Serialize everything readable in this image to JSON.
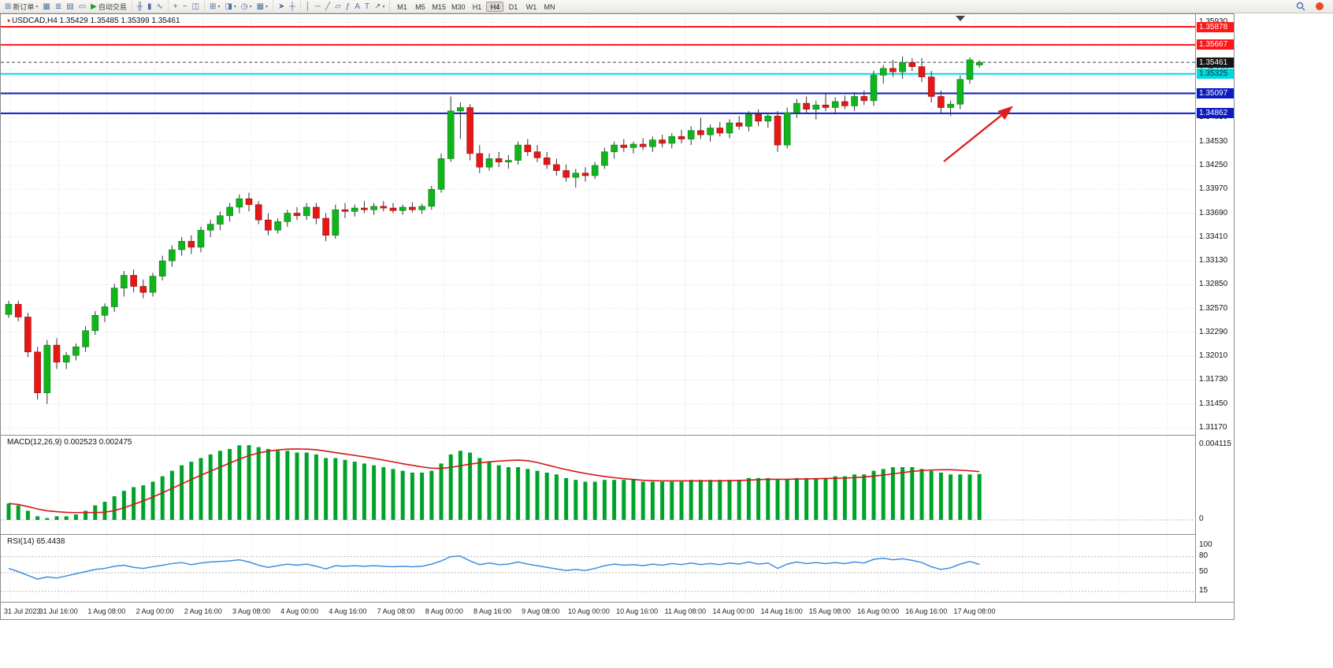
{
  "toolbar": {
    "new_order_label": "新订单",
    "autotrading_label": "自动交易",
    "icon_groups": [
      {
        "items": [
          {
            "name": "new-order-button",
            "glyph": "⊞",
            "label_key": "new_order_label",
            "caret": true
          },
          {
            "name": "charts-icon",
            "glyph": "▦"
          },
          {
            "name": "market-watch-icon",
            "glyph": "≣"
          },
          {
            "name": "navigator-icon",
            "glyph": "▤"
          },
          {
            "name": "terminal-icon",
            "glyph": "▭"
          },
          {
            "name": "autotrading-button",
            "glyph": "▶",
            "label_key": "autotrading_label",
            "play": true
          }
        ]
      },
      {
        "items": [
          {
            "name": "bar-chart-icon",
            "glyph": "╫"
          },
          {
            "name": "candlestick-chart-icon",
            "glyph": "▮"
          },
          {
            "name": "line-chart-icon",
            "glyph": "∿"
          }
        ]
      },
      {
        "items": [
          {
            "name": "zoom-in-icon",
            "glyph": "+"
          },
          {
            "name": "zoom-out-icon",
            "glyph": "−"
          },
          {
            "name": "tile-windows-icon",
            "glyph": "◫"
          }
        ]
      },
      {
        "items": [
          {
            "name": "new-chart-dropdown",
            "glyph": "⊞",
            "caret": true
          },
          {
            "name": "profiles-dropdown",
            "glyph": "◨",
            "caret": true
          },
          {
            "name": "periods-dropdown",
            "glyph": "◷",
            "caret": true
          },
          {
            "name": "templates-dropdown",
            "glyph": "▦",
            "caret": true
          }
        ]
      },
      {
        "items": [
          {
            "name": "cursor-icon",
            "glyph": "➤"
          },
          {
            "name": "crosshair-icon",
            "glyph": "┼"
          }
        ]
      },
      {
        "items": [
          {
            "name": "vertical-line-icon",
            "glyph": "│"
          },
          {
            "name": "horizontal-line-icon",
            "glyph": "─"
          },
          {
            "name": "trendline-icon",
            "glyph": "╱"
          },
          {
            "name": "channel-icon",
            "glyph": "▱"
          },
          {
            "name": "fibonacci-icon",
            "glyph": "ƒ"
          },
          {
            "name": "text-icon",
            "glyph": "A"
          },
          {
            "name": "label-icon",
            "glyph": "T"
          },
          {
            "name": "arrows-dropdown",
            "glyph": "↗",
            "caret": true
          }
        ]
      }
    ],
    "timeframes": [
      "M1",
      "M5",
      "M15",
      "M30",
      "H1",
      "H4",
      "D1",
      "W1",
      "MN"
    ],
    "active_timeframe": "H4"
  },
  "main": {
    "title": "USDCAD,H4 1.35429 1.35485 1.35399 1.35461"
  },
  "macd_panel": {
    "name": "MACD(12,26,9)",
    "value": "0.002523",
    "signal": "0.002475"
  },
  "rsi_panel": {
    "name": "RSI(14)",
    "value": "65.4438"
  },
  "chart_data": {
    "type": "candlestick",
    "symbol": "USDCAD",
    "timeframe": "H4",
    "title": "USDCAD,H4",
    "current_bar": {
      "open": 1.35429,
      "high": 1.35485,
      "low": 1.35399,
      "close": 1.35461
    },
    "bid": 1.35461,
    "up_color": "#12b41c",
    "down_color": "#e51717",
    "wick_color": "#333333",
    "price_axis": {
      "min": 1.3117,
      "max": 1.3593,
      "tick_step": 0.0028,
      "ticks": [
        "1.35930",
        "1.35650",
        "1.35370",
        "1.35090",
        "1.34810",
        "1.34530",
        "1.34250",
        "1.33970",
        "1.33690",
        "1.33410",
        "1.33130",
        "1.32850",
        "1.32570",
        "1.32290",
        "1.32010",
        "1.31730",
        "1.31450",
        "1.31170"
      ]
    },
    "time_labels": [
      "31 Jul 2023",
      "31 Jul 16:00",
      "1 Aug 08:00",
      "2 Aug 00:00",
      "2 Aug 16:00",
      "3 Aug 08:00",
      "4 Aug 00:00",
      "4 Aug 16:00",
      "7 Aug 08:00",
      "8 Aug 00:00",
      "8 Aug 16:00",
      "9 Aug 08:00",
      "10 Aug 00:00",
      "10 Aug 16:00",
      "11 Aug 08:00",
      "14 Aug 00:00",
      "14 Aug 16:00",
      "15 Aug 08:00",
      "16 Aug 00:00",
      "16 Aug 16:00",
      "17 Aug 08:00"
    ],
    "hlines": [
      {
        "price": 1.35878,
        "label": "1.35878",
        "color": "#ff1616",
        "badge_bg": "#ff1616",
        "badge_fg": "#ffffff",
        "width": 2
      },
      {
        "price": 1.35667,
        "label": "1.35667",
        "color": "#ff1616",
        "badge_bg": "#ff1616",
        "badge_fg": "#ffffff",
        "width": 2
      },
      {
        "price": 1.35325,
        "label": "1.35325",
        "color": "#00d8e0",
        "badge_bg": "#00d8e0",
        "badge_fg": "#003338",
        "width": 2
      },
      {
        "price": 1.35097,
        "label": "1.35097",
        "color": "#0d1bc4",
        "badge_bg": "#0d1bc4",
        "badge_fg": "#ffffff",
        "width": 2
      },
      {
        "price": 1.34862,
        "label": "1.34862",
        "color": "#0d1bc4",
        "badge_bg": "#0d1bc4",
        "badge_fg": "#ffffff",
        "width": 2
      }
    ],
    "bid_line": {
      "price": 1.35461,
      "label": "1.35461",
      "badge_bg": "#151515",
      "badge_fg": "#ffffff"
    },
    "annotations": [
      {
        "type": "arrow",
        "from": [
          1197,
          187
        ],
        "to": [
          1283,
          118
        ],
        "color": "#e02020"
      }
    ],
    "candles": [
      [
        1.325,
        1.3266,
        1.3246,
        1.3262
      ],
      [
        1.3262,
        1.3266,
        1.3242,
        1.3247
      ],
      [
        1.3247,
        1.3252,
        1.32,
        1.3206
      ],
      [
        1.3206,
        1.3212,
        1.315,
        1.3158
      ],
      [
        1.3158,
        1.322,
        1.3145,
        1.3214
      ],
      [
        1.3214,
        1.3222,
        1.3186,
        1.3194
      ],
      [
        1.3194,
        1.3206,
        1.3186,
        1.3202
      ],
      [
        1.3202,
        1.3216,
        1.3196,
        1.3212
      ],
      [
        1.3212,
        1.3236,
        1.3206,
        1.3231
      ],
      [
        1.3231,
        1.3254,
        1.3226,
        1.3249
      ],
      [
        1.3249,
        1.3263,
        1.3241,
        1.3259
      ],
      [
        1.3259,
        1.3286,
        1.3253,
        1.3281
      ],
      [
        1.3281,
        1.3301,
        1.3271,
        1.3296
      ],
      [
        1.3296,
        1.3303,
        1.3276,
        1.3283
      ],
      [
        1.3283,
        1.3291,
        1.3269,
        1.3276
      ],
      [
        1.3276,
        1.3299,
        1.3271,
        1.3295
      ],
      [
        1.3295,
        1.3319,
        1.329,
        1.3313
      ],
      [
        1.3313,
        1.3331,
        1.3306,
        1.3326
      ],
      [
        1.3326,
        1.3341,
        1.3319,
        1.3336
      ],
      [
        1.3336,
        1.3343,
        1.3321,
        1.3329
      ],
      [
        1.3329,
        1.3353,
        1.3323,
        1.3349
      ],
      [
        1.3349,
        1.3361,
        1.3341,
        1.3356
      ],
      [
        1.3356,
        1.3371,
        1.3349,
        1.3366
      ],
      [
        1.3366,
        1.3381,
        1.3359,
        1.3376
      ],
      [
        1.3376,
        1.3391,
        1.3369,
        1.3386
      ],
      [
        1.3386,
        1.3393,
        1.3371,
        1.3379
      ],
      [
        1.3379,
        1.3383,
        1.3356,
        1.3361
      ],
      [
        1.3361,
        1.3369,
        1.3343,
        1.3349
      ],
      [
        1.3349,
        1.3363,
        1.3345,
        1.3359
      ],
      [
        1.3359,
        1.3373,
        1.3353,
        1.3369
      ],
      [
        1.3369,
        1.3376,
        1.3361,
        1.3366
      ],
      [
        1.3366,
        1.3381,
        1.3361,
        1.3376
      ],
      [
        1.3376,
        1.3381,
        1.3356,
        1.3363
      ],
      [
        1.3363,
        1.3369,
        1.3336,
        1.3343
      ],
      [
        1.3343,
        1.3379,
        1.3339,
        1.3373
      ],
      [
        1.3373,
        1.3381,
        1.3363,
        1.3371
      ],
      [
        1.3371,
        1.3379,
        1.3365,
        1.3375
      ],
      [
        1.3375,
        1.3383,
        1.3369,
        1.3373
      ],
      [
        1.3373,
        1.3381,
        1.3367,
        1.3377
      ],
      [
        1.3377,
        1.3383,
        1.3371,
        1.3375
      ],
      [
        1.3375,
        1.3381,
        1.3369,
        1.3372
      ],
      [
        1.3372,
        1.3379,
        1.3367,
        1.3376
      ],
      [
        1.3376,
        1.3382,
        1.337,
        1.3373
      ],
      [
        1.3373,
        1.338,
        1.3368,
        1.3377
      ],
      [
        1.3377,
        1.3401,
        1.3373,
        1.3397
      ],
      [
        1.3397,
        1.3439,
        1.3393,
        1.3433
      ],
      [
        1.3433,
        1.3506,
        1.3429,
        1.3489
      ],
      [
        1.3489,
        1.3499,
        1.3456,
        1.3493
      ],
      [
        1.3493,
        1.3497,
        1.3431,
        1.3439
      ],
      [
        1.3439,
        1.3449,
        1.3416,
        1.3423
      ],
      [
        1.3423,
        1.3439,
        1.3419,
        1.3433
      ],
      [
        1.3433,
        1.3441,
        1.3423,
        1.3429
      ],
      [
        1.3429,
        1.3437,
        1.3421,
        1.3431
      ],
      [
        1.3431,
        1.3453,
        1.3426,
        1.3449
      ],
      [
        1.3449,
        1.3456,
        1.3436,
        1.3441
      ],
      [
        1.3441,
        1.3449,
        1.3429,
        1.3434
      ],
      [
        1.3434,
        1.3441,
        1.3421,
        1.3426
      ],
      [
        1.3426,
        1.3433,
        1.3413,
        1.3419
      ],
      [
        1.3419,
        1.3426,
        1.3406,
        1.3411
      ],
      [
        1.3411,
        1.3421,
        1.3399,
        1.3416
      ],
      [
        1.3416,
        1.3423,
        1.3406,
        1.3413
      ],
      [
        1.3413,
        1.3429,
        1.3409,
        1.3425
      ],
      [
        1.3425,
        1.3446,
        1.3421,
        1.3441
      ],
      [
        1.3441,
        1.3453,
        1.3433,
        1.3449
      ],
      [
        1.3449,
        1.3456,
        1.3441,
        1.3446
      ],
      [
        1.3446,
        1.3453,
        1.3439,
        1.345
      ],
      [
        1.345,
        1.3457,
        1.3443,
        1.3447
      ],
      [
        1.3447,
        1.3459,
        1.3441,
        1.3455
      ],
      [
        1.3455,
        1.3461,
        1.3446,
        1.3451
      ],
      [
        1.3451,
        1.3463,
        1.3445,
        1.3459
      ],
      [
        1.3459,
        1.3467,
        1.3451,
        1.3456
      ],
      [
        1.3456,
        1.3471,
        1.3449,
        1.3466
      ],
      [
        1.3466,
        1.3481,
        1.3456,
        1.3461
      ],
      [
        1.3461,
        1.3473,
        1.3453,
        1.3469
      ],
      [
        1.3469,
        1.3476,
        1.3459,
        1.3463
      ],
      [
        1.3463,
        1.3479,
        1.3457,
        1.3475
      ],
      [
        1.3475,
        1.3483,
        1.3467,
        1.3471
      ],
      [
        1.3471,
        1.3489,
        1.3465,
        1.3485
      ],
      [
        1.3485,
        1.3491,
        1.3471,
        1.3477
      ],
      [
        1.3477,
        1.3487,
        1.3469,
        1.3483
      ],
      [
        1.3483,
        1.3489,
        1.3441,
        1.3449
      ],
      [
        1.3449,
        1.3493,
        1.3445,
        1.3487
      ],
      [
        1.3487,
        1.3503,
        1.3481,
        1.3498
      ],
      [
        1.3498,
        1.3506,
        1.3486,
        1.3491
      ],
      [
        1.3491,
        1.3501,
        1.3479,
        1.3496
      ],
      [
        1.3496,
        1.3509,
        1.3489,
        1.3493
      ],
      [
        1.3493,
        1.3505,
        1.3485,
        1.35
      ],
      [
        1.35,
        1.3507,
        1.3491,
        1.3495
      ],
      [
        1.3495,
        1.3511,
        1.3489,
        1.3506
      ],
      [
        1.3506,
        1.3513,
        1.3496,
        1.3501
      ],
      [
        1.3501,
        1.3536,
        1.3495,
        1.3531
      ],
      [
        1.3531,
        1.3543,
        1.3521,
        1.3539
      ],
      [
        1.3539,
        1.3549,
        1.3529,
        1.3535
      ],
      [
        1.3535,
        1.3553,
        1.3527,
        1.3546
      ],
      [
        1.3546,
        1.3551,
        1.3536,
        1.3541
      ],
      [
        1.3541,
        1.3551,
        1.3523,
        1.3529
      ],
      [
        1.3529,
        1.3536,
        1.3499,
        1.3506
      ],
      [
        1.3506,
        1.3513,
        1.3486,
        1.3493
      ],
      [
        1.3493,
        1.3501,
        1.3483,
        1.3497
      ],
      [
        1.3497,
        1.3531,
        1.3491,
        1.3526
      ],
      [
        1.3526,
        1.3552,
        1.3521,
        1.3549
      ],
      [
        1.35429,
        1.35485,
        1.35399,
        1.35461
      ]
    ],
    "indicators": {
      "macd": {
        "name": "MACD(12,26,9)",
        "value": 0.002523,
        "signal_value": 0.002475,
        "scale_max": 0.004115,
        "scale_ticks": [
          "0.004115",
          "0"
        ],
        "histogram_color": "#00a32a",
        "signal_color": "#d41616",
        "values": [
          0.0009,
          0.0008,
          0.0005,
          0.0002,
          0.0001,
          0.0002,
          0.0002,
          0.0003,
          0.0005,
          0.0008,
          0.001,
          0.0013,
          0.0016,
          0.0018,
          0.0019,
          0.0021,
          0.0024,
          0.0027,
          0.003,
          0.0032,
          0.0034,
          0.0036,
          0.0038,
          0.0039,
          0.0041,
          0.00411,
          0.004,
          0.0039,
          0.0038,
          0.0038,
          0.0037,
          0.0037,
          0.0036,
          0.0034,
          0.0034,
          0.0033,
          0.0032,
          0.0031,
          0.003,
          0.0029,
          0.0028,
          0.0027,
          0.0026,
          0.0026,
          0.0027,
          0.0031,
          0.0036,
          0.0038,
          0.0037,
          0.0034,
          0.0032,
          0.003,
          0.0029,
          0.0029,
          0.0028,
          0.0027,
          0.0026,
          0.0025,
          0.0023,
          0.0022,
          0.0021,
          0.0021,
          0.0022,
          0.0022,
          0.0022,
          0.0022,
          0.0021,
          0.0021,
          0.0021,
          0.0021,
          0.0021,
          0.0022,
          0.0022,
          0.0022,
          0.0022,
          0.0022,
          0.0022,
          0.0023,
          0.0023,
          0.0023,
          0.0022,
          0.0022,
          0.0023,
          0.0023,
          0.0023,
          0.0023,
          0.0024,
          0.0024,
          0.0025,
          0.0025,
          0.0027,
          0.0028,
          0.0029,
          0.0029,
          0.0029,
          0.0028,
          0.0027,
          0.0026,
          0.0025,
          0.0025,
          0.0025,
          0.002523
        ]
      },
      "rsi": {
        "name": "RSI(14)",
        "value": 65.4438,
        "line_color": "#3f8edc",
        "levels": [
          100,
          80,
          50,
          15
        ],
        "scale_ticks": [
          "100",
          "80",
          "50",
          "15"
        ],
        "values": [
          58,
          52,
          45,
          38,
          42,
          40,
          44,
          48,
          52,
          56,
          58,
          62,
          64,
          60,
          58,
          61,
          64,
          67,
          69,
          65,
          68,
          70,
          71,
          72,
          74,
          70,
          64,
          60,
          63,
          66,
          64,
          66,
          62,
          57,
          63,
          62,
          63,
          62,
          63,
          62,
          61,
          62,
          61,
          62,
          66,
          72,
          80,
          81,
          72,
          65,
          68,
          65,
          66,
          70,
          66,
          63,
          60,
          57,
          54,
          56,
          54,
          58,
          63,
          66,
          64,
          65,
          63,
          66,
          64,
          67,
          65,
          68,
          65,
          67,
          65,
          68,
          66,
          70,
          66,
          68,
          58,
          66,
          70,
          67,
          69,
          67,
          69,
          67,
          70,
          68,
          75,
          77,
          74,
          76,
          73,
          69,
          61,
          56,
          59,
          66,
          71,
          65.4438
        ]
      }
    }
  }
}
